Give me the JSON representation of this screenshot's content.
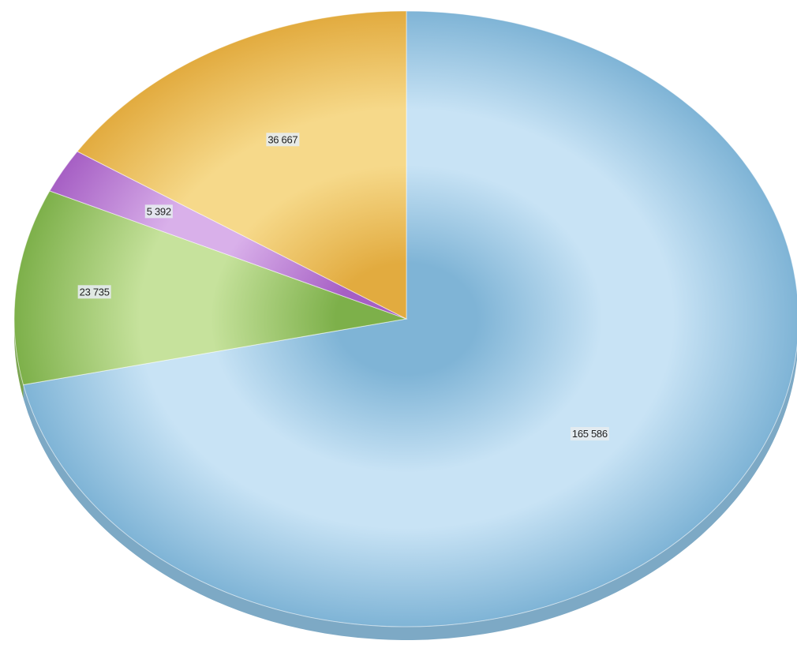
{
  "chart_data": {
    "type": "pie",
    "style": "3d",
    "start_angle": "12 o'clock",
    "direction": "clockwise",
    "slices": [
      {
        "label": "165 586",
        "value": 165586,
        "color": "#7fb4d6",
        "highlight": "#c8e3f5"
      },
      {
        "label": "23 735",
        "value": 23735,
        "color": "#7db04a",
        "highlight": "#c6e29c"
      },
      {
        "label": "5 392",
        "value": 5392,
        "color": "#a65fc4",
        "highlight": "#d9b0ea"
      },
      {
        "label": "36 667",
        "value": 36667,
        "color": "#e2ab3f",
        "highlight": "#f6d98a"
      }
    ]
  }
}
